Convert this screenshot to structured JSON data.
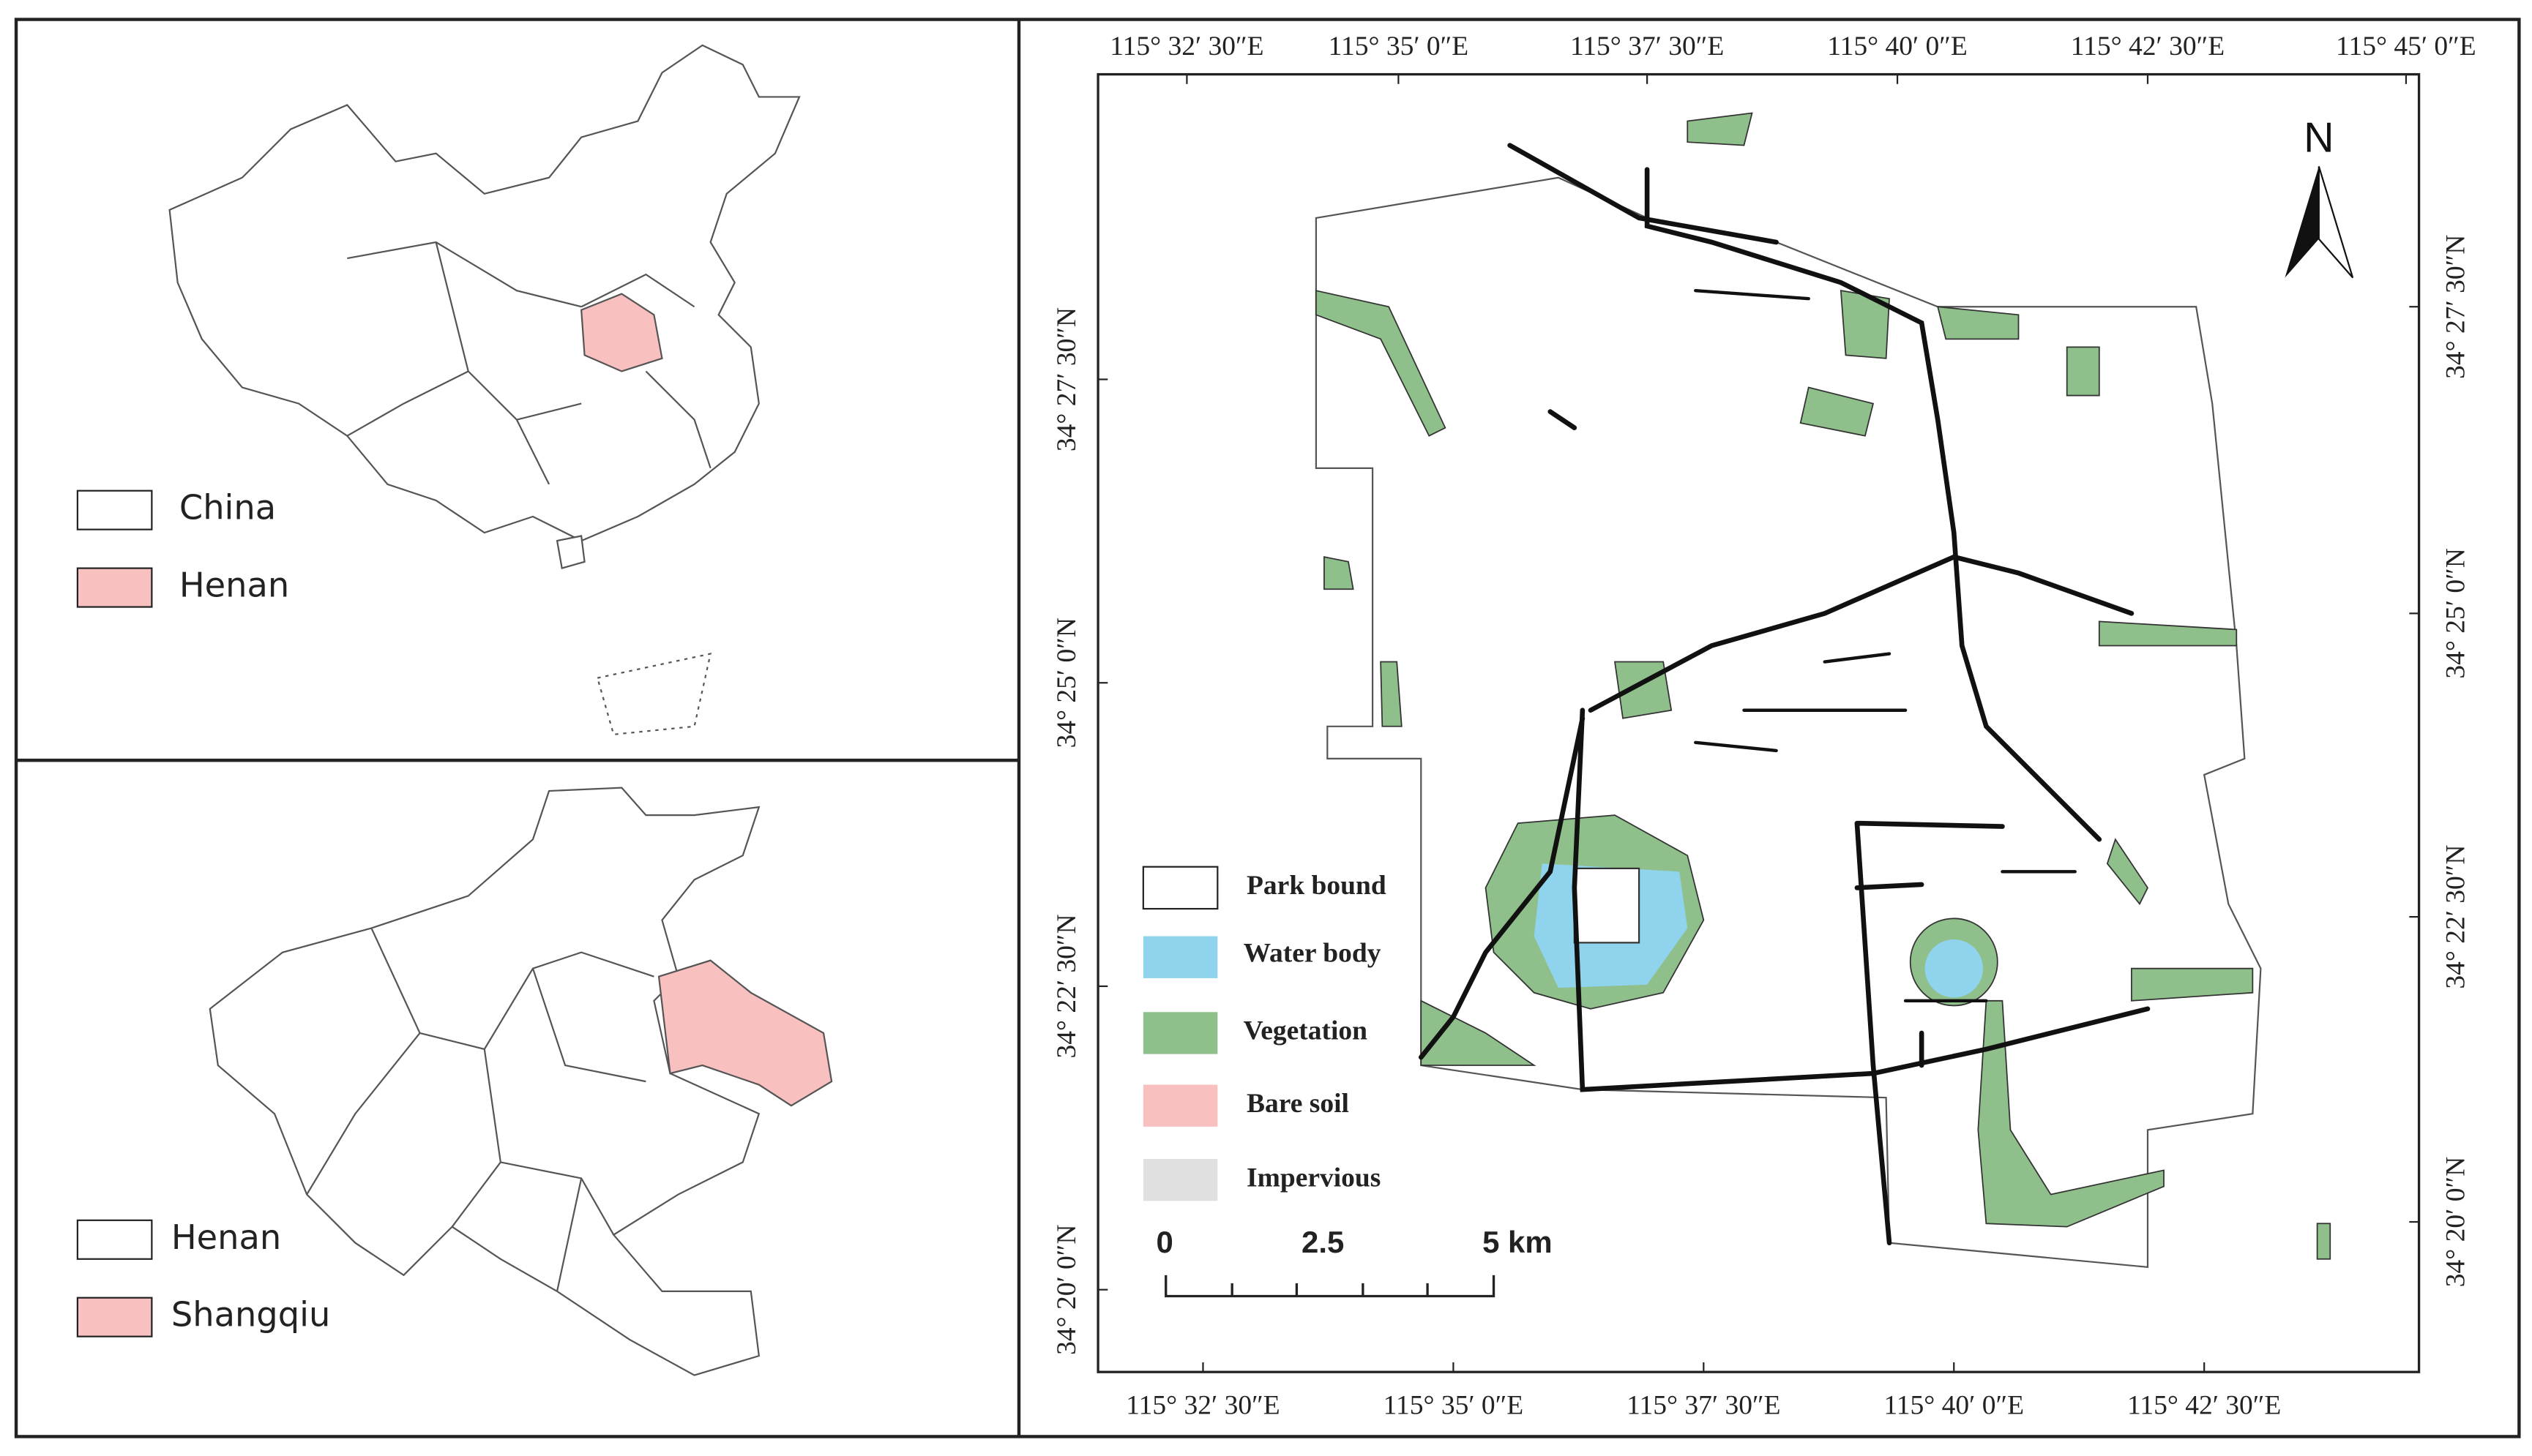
{
  "china_panel": {
    "legend": [
      "China",
      "Henan"
    ]
  },
  "henan_panel": {
    "legend": [
      "Henan",
      "Shangqiu"
    ]
  },
  "study_map": {
    "legend": [
      "Park bound",
      "Water body",
      "Vegetation",
      "Bare soil",
      "Impervious"
    ],
    "scale": [
      "0",
      "2.5",
      "5 km"
    ],
    "north": "N",
    "top_labels": [
      "115°  32′ 30″E",
      "115°  35′ 0″E",
      "115°  37′ 30″E",
      "115°  40′ 0″E",
      "115°  42′ 30″E",
      "115°  45′ 0″E"
    ],
    "bottom_labels": [
      "115°  32′ 30″E",
      "115°  35′ 0″E",
      "115°  37′ 30″E",
      "115°  40′ 0″E",
      "115°  42′ 30″E"
    ],
    "left_labels": [
      "34°  27′ 30″N",
      "34°  25′ 0″N",
      "34°  22′ 30″N",
      "34°  20′ 0″N"
    ],
    "right_labels": [
      "34°  27′ 30″N",
      "34°  25′ 0″N",
      "34°  22′ 30″N",
      "34°  20′ 0″N"
    ]
  }
}
